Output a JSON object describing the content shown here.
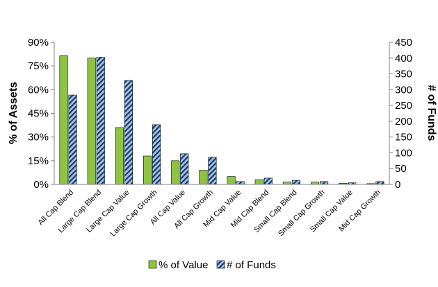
{
  "chart_data": {
    "type": "bar",
    "categories": [
      "All Cap Blend",
      "Large Cap Blend",
      "Large Cap Value",
      "Large Cap Growth",
      "All Cap Value",
      "All Cap Growth",
      "Mid Cap Value",
      "Mid Cap Blend",
      "Small Cap Blend",
      "Small Cap Growth",
      "Small Cap Value",
      "Mid Cap Growth"
    ],
    "series": [
      {
        "name": "% of Value",
        "axis": "left",
        "color": "#8CC63F",
        "values": [
          81.5,
          80.0,
          36.0,
          18.0,
          15.0,
          9.0,
          5.0,
          3.0,
          1.5,
          1.5,
          0.7,
          0.5
        ]
      },
      {
        "name": "# of Funds",
        "axis": "right",
        "color": "#9DC3E6",
        "values": [
          283,
          403,
          329,
          189,
          97,
          86,
          9,
          20,
          13,
          9,
          5,
          9
        ]
      }
    ],
    "ylabel": "% of Assets",
    "y2label": "# of Funds",
    "y_ticks": [
      "0%",
      "15%",
      "30%",
      "45%",
      "60%",
      "75%",
      "90%"
    ],
    "ylim": [
      0,
      90
    ],
    "y2_ticks": [
      "0",
      "50",
      "100",
      "150",
      "200",
      "250",
      "300",
      "350",
      "400",
      "450"
    ],
    "y2lim": [
      0,
      450
    ],
    "grid": false,
    "legend_position": "bottom"
  }
}
